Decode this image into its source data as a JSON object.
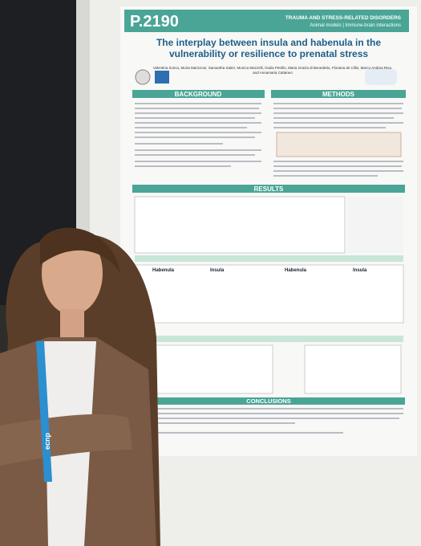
{
  "poster": {
    "code": "P.2190",
    "track": "TRAUMA AND STRESS-RELATED DISORDERS",
    "topics": "Animal models | Immune-brain interactions",
    "title": "The interplay between insula and habenula in the vulnerability or resilience to prenatal stress",
    "authors": "Valentina Zonca, Moira Marizzoni, Samantha Saleri, Monica Mazzelli, Giulia Petrillo, Maria Grazia di Benedetto, Floriana de Cillis, Marco Andrea Riva, and Annamaria Cattaneo",
    "sections": {
      "background": "BACKGROUND",
      "methods": "METHODS",
      "results": "RESULTS",
      "conclusions": "CONCLUSIONS"
    },
    "panels": [
      "Habenula",
      "Insula",
      "Habenula",
      "Insula"
    ]
  },
  "lanyard": "ecnp"
}
